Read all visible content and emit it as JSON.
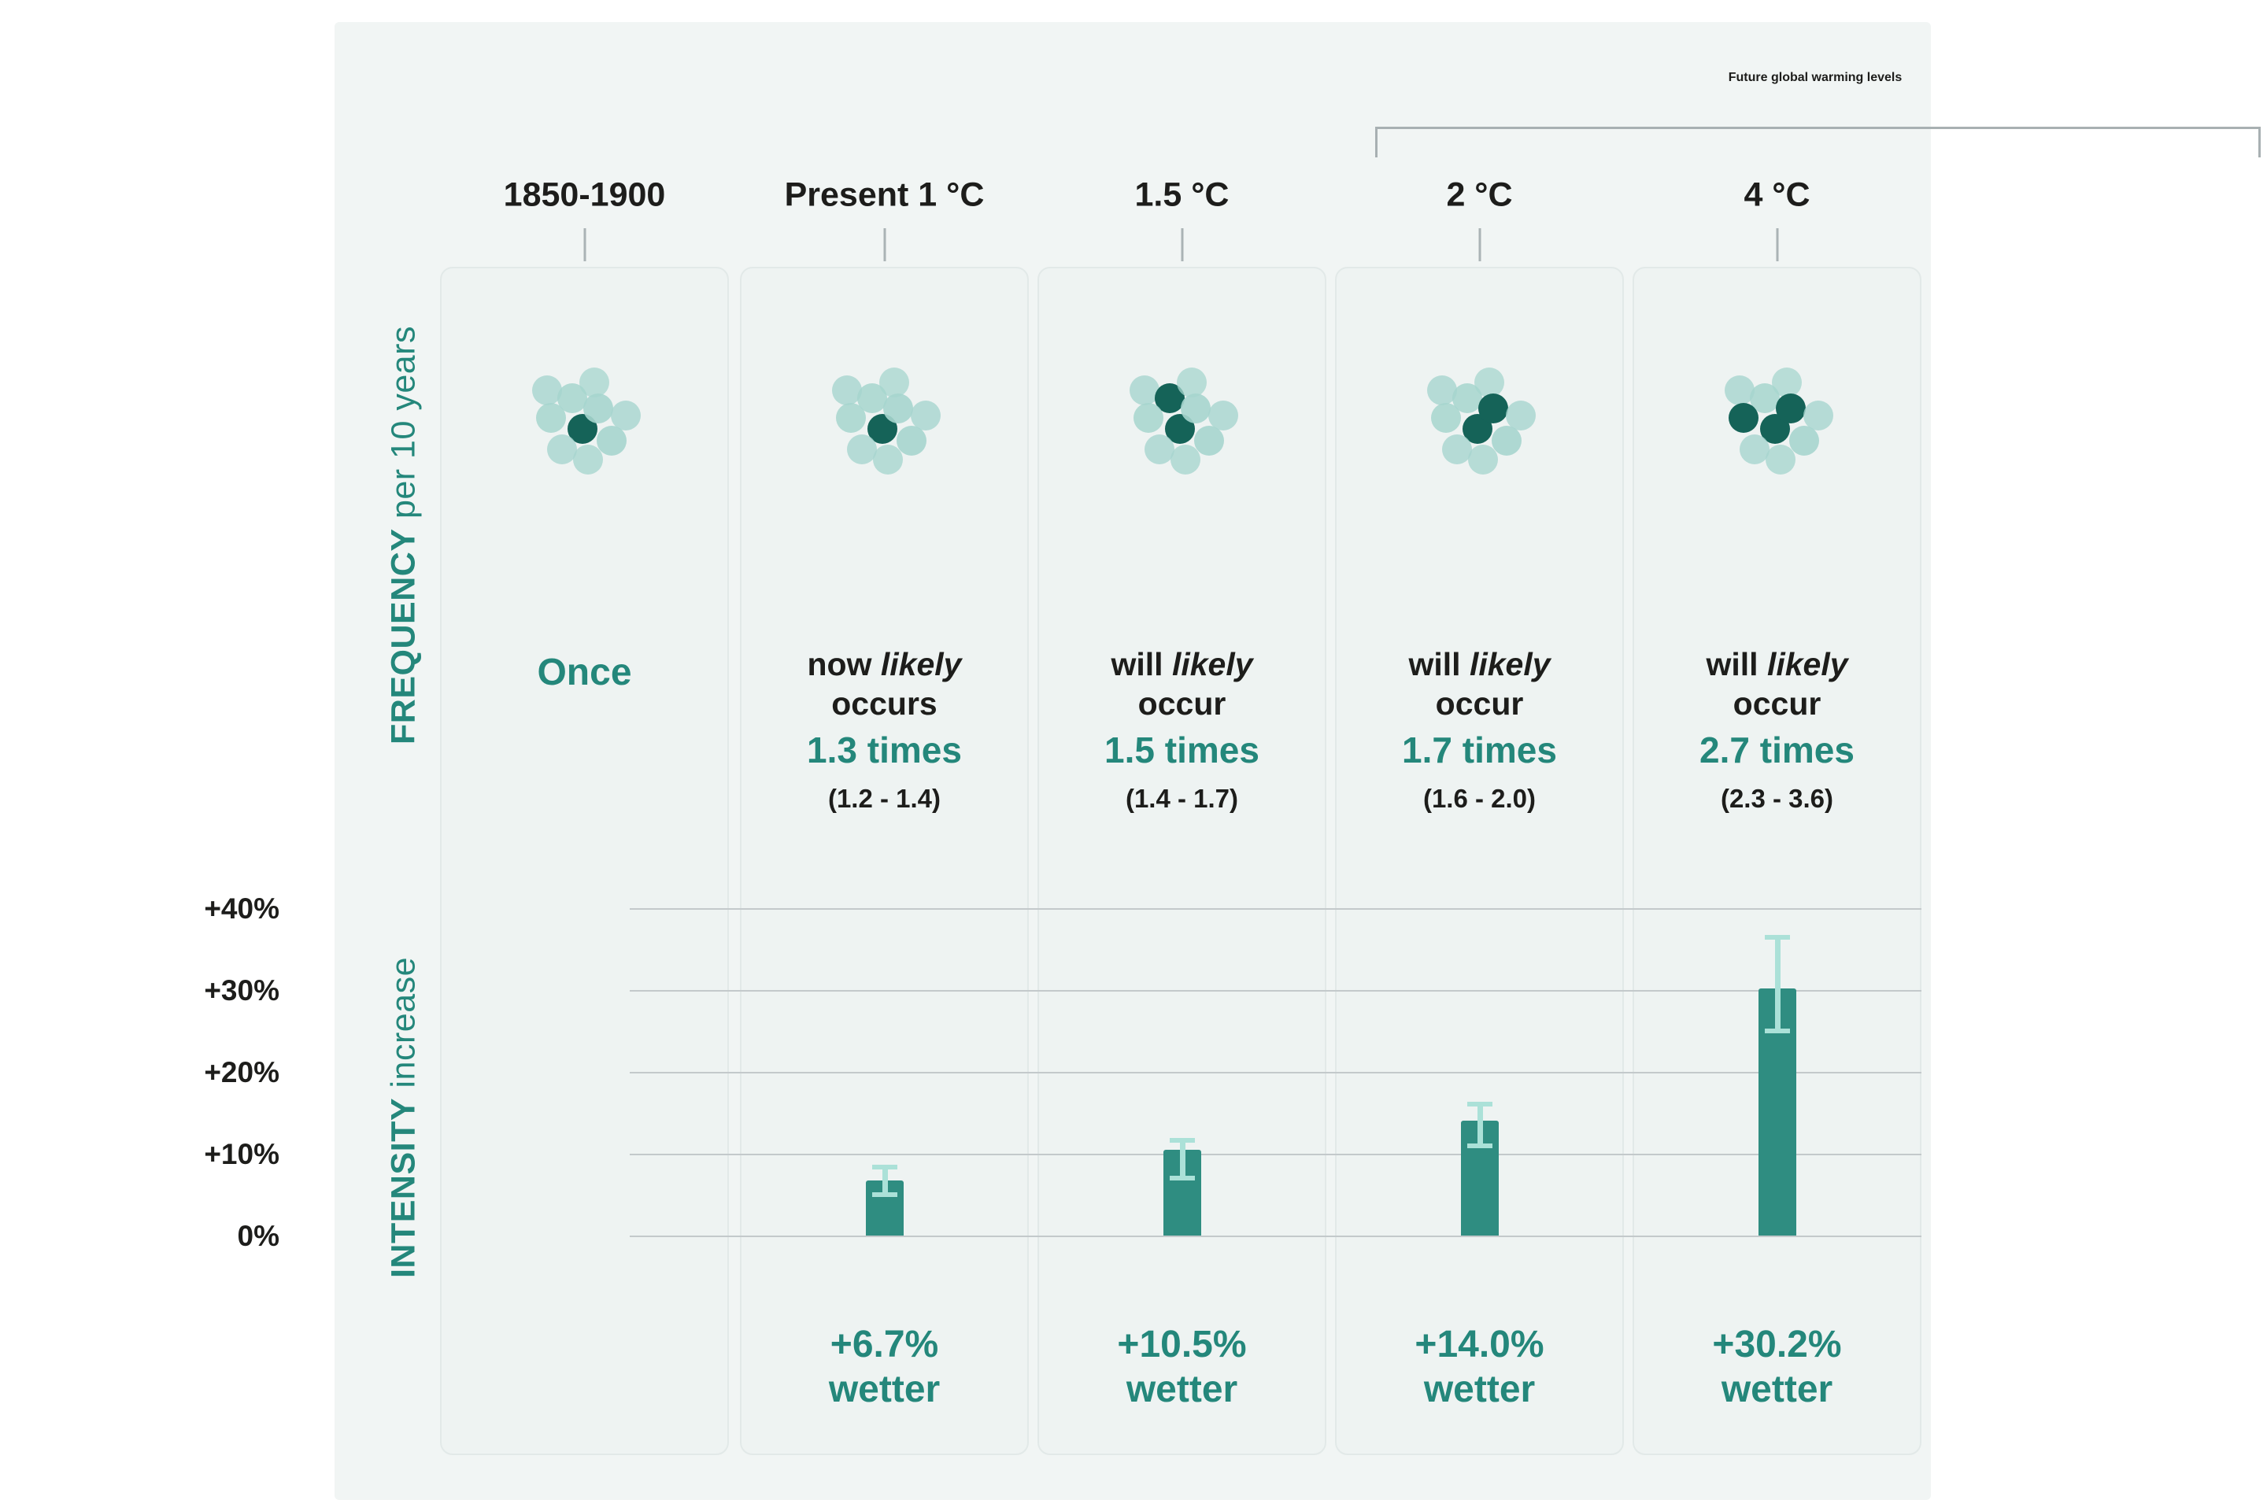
{
  "header": {
    "future_title": "Future global warming levels"
  },
  "axis": {
    "frequency_label_strong": "FREQUENCY",
    "frequency_label_rest": " per 10 years",
    "intensity_label_strong": "INTENSITY",
    "intensity_label_rest": " increase"
  },
  "colors": {
    "teal_text": "#24877b",
    "bar": "#2f8d81",
    "dot_light": "#a6d5ce",
    "dot_dark": "#156358",
    "error_bar": "#abe1d8",
    "grid_line": "#c3c9cb",
    "panel_background": "#f1f5f4",
    "card_background": "#eef3f2",
    "heading_text": "#1d1d1b"
  },
  "cols": [
    {
      "header": "1850-1900",
      "once": "Once"
    },
    {
      "header": "Present 1 °C",
      "line1_pre": "now ",
      "line1_italic": "likely",
      "line2": "occurs",
      "times": "1.3 times",
      "range": "(1.2 - 1.4)",
      "wetter_value": "+6.7%",
      "wetter_word": "wetter"
    },
    {
      "header": "1.5 °C",
      "line1_pre": "will ",
      "line1_italic": "likely",
      "line2": "occur",
      "times": "1.5 times",
      "range": "(1.4 - 1.7)",
      "wetter_value": "+10.5%",
      "wetter_word": "wetter"
    },
    {
      "header": "2 °C",
      "line1_pre": "will ",
      "line1_italic": "likely",
      "line2": "occur",
      "times": "1.7 times",
      "range": "(1.6 - 2.0)",
      "wetter_value": "+14.0%",
      "wetter_word": "wetter"
    },
    {
      "header": "4 °C",
      "line1_pre": "will ",
      "line1_italic": "likely",
      "line2": "occur",
      "times": "2.7 times",
      "range": "(2.3 - 3.6)",
      "wetter_value": "+30.2%",
      "wetter_word": "wetter"
    }
  ],
  "chart_data": {
    "type": "bar",
    "title": "Future global warming levels",
    "categories": [
      "1850-1900",
      "Present 1 °C",
      "1.5 °C",
      "2 °C",
      "4 °C"
    ],
    "ylabel_frequency": "FREQUENCY per 10 years",
    "ylabel_intensity": "INTENSITY increase",
    "frequency": {
      "unit": "events per 10 years",
      "values": [
        1,
        1.3,
        1.5,
        1.7,
        2.7
      ],
      "likely_ranges": [
        null,
        [
          1.2,
          1.4
        ],
        [
          1.4,
          1.7
        ],
        [
          1.6,
          2.0
        ],
        [
          2.3,
          3.6
        ]
      ],
      "labels": [
        "Once",
        "now likely occurs 1.3 times (1.2 - 1.4)",
        "will likely occur 1.5 times (1.4 - 1.7)",
        "will likely occur 1.7 times (1.6 - 2.0)",
        "will likely occur 2.7 times (2.3 - 3.6)"
      ],
      "total_dots": 10,
      "dark_dots": [
        1,
        1,
        2,
        2,
        3
      ]
    },
    "intensity": {
      "unit": "% wetter",
      "values": [
        null,
        6.7,
        10.5,
        14.0,
        30.2
      ],
      "error_low": [
        null,
        5.0,
        7.0,
        11.0,
        25.0
      ],
      "error_high": [
        null,
        8.4,
        11.6,
        16.1,
        36.4
      ],
      "labels": [
        null,
        "+6.7% wetter",
        "+10.5% wetter",
        "+14.0% wetter",
        "+30.2% wetter"
      ],
      "ytick_values": [
        40,
        30,
        20,
        10,
        0
      ],
      "ytick_labels": [
        "+40%",
        "+30%",
        "+20%",
        "+10%",
        "0%"
      ],
      "ylim": [
        0,
        45
      ],
      "grid": true,
      "legend_position": "none"
    }
  }
}
